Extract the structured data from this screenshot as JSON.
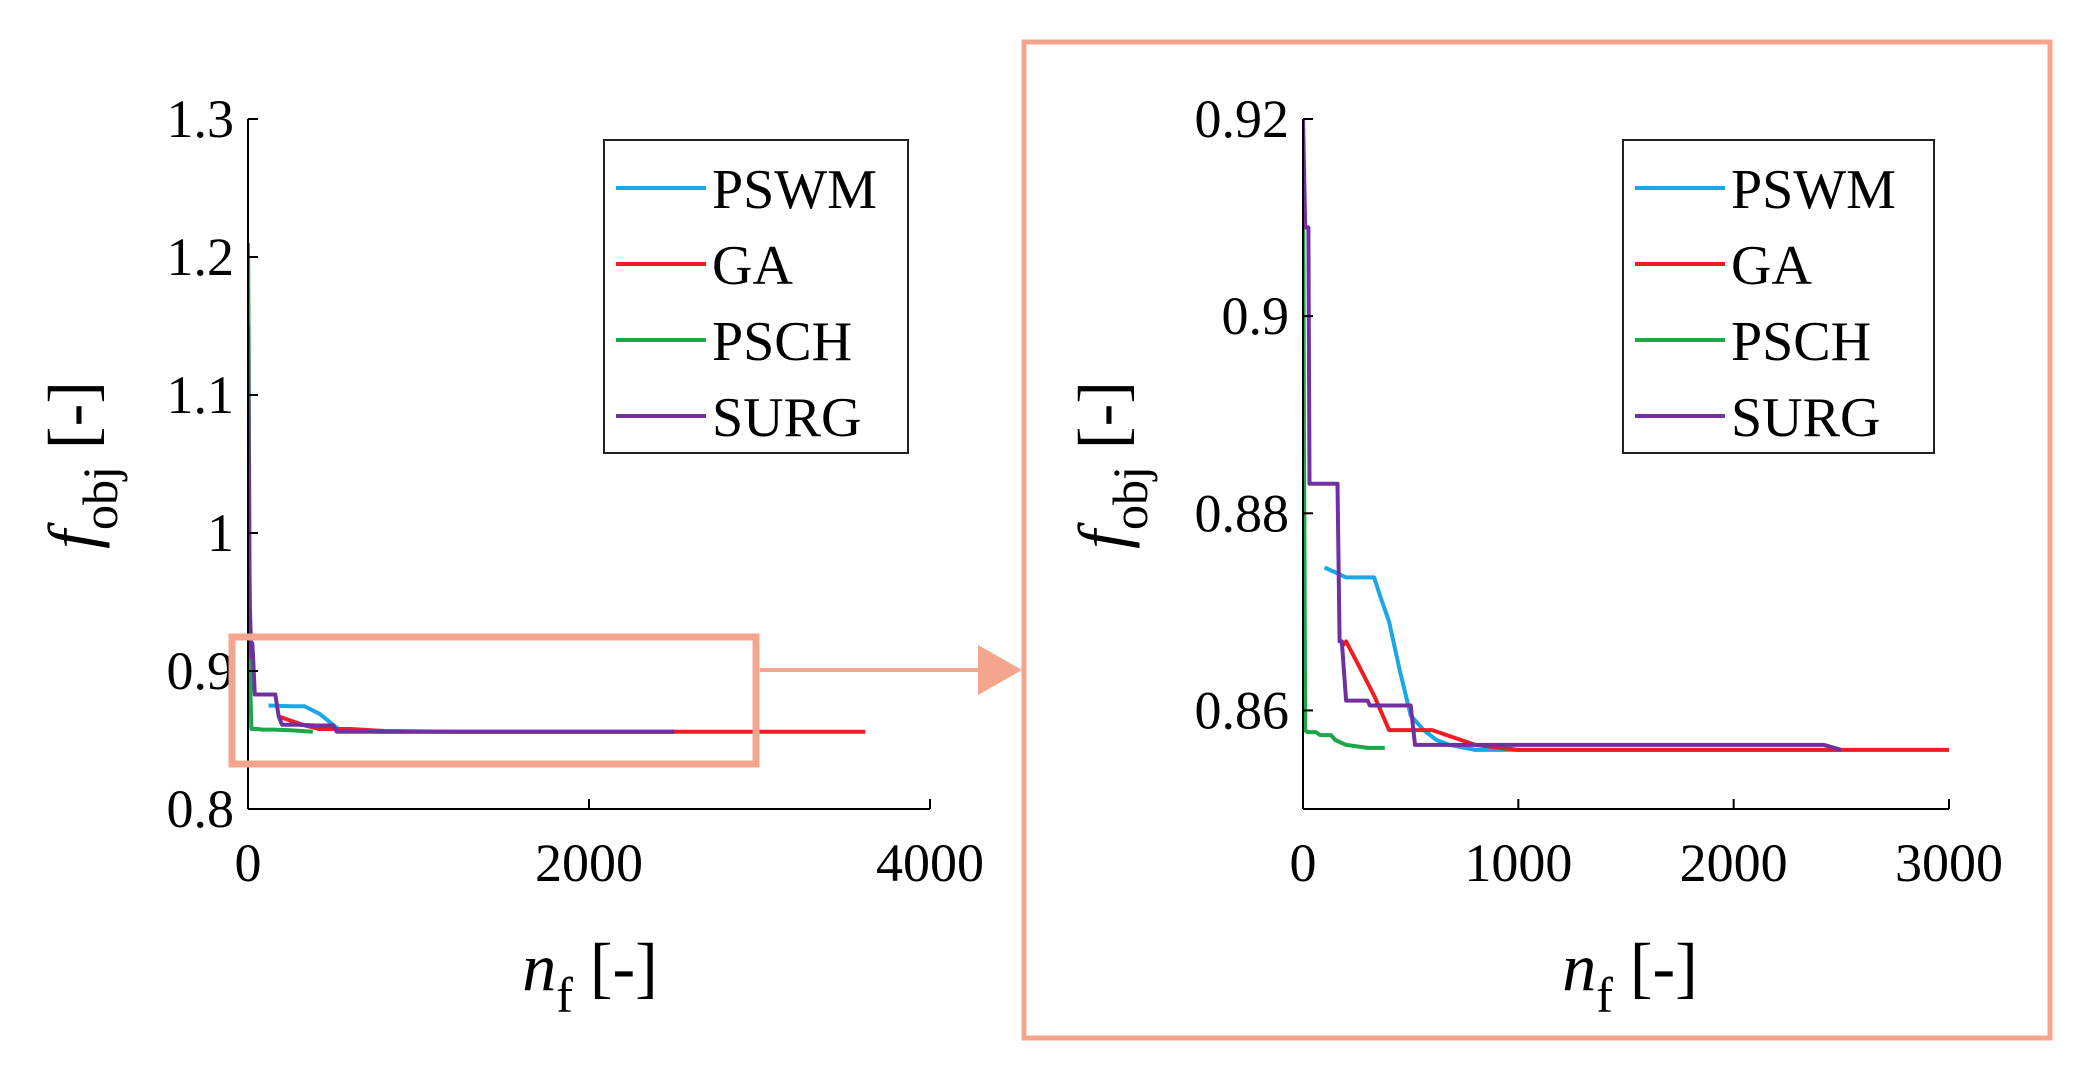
{
  "chart_data": [
    {
      "type": "line",
      "panel": "full",
      "title": "",
      "xlabel": {
        "main": "n",
        "sub": "f",
        "unit": "[-]"
      },
      "ylabel": {
        "main": "f",
        "sub": "obj",
        "unit": "[-]"
      },
      "xlim": [
        0,
        4000
      ],
      "ylim": [
        0.8,
        1.3
      ],
      "xticks": [
        0,
        2000,
        4000
      ],
      "xtick_labels": [
        "0",
        "2000",
        "4000"
      ],
      "yticks": [
        0.8,
        0.9,
        1.0,
        1.1,
        1.2,
        1.3
      ],
      "ytick_labels": [
        "0.8",
        "0.9",
        "1",
        "1.1",
        "1.2",
        "1.3"
      ],
      "grid": false,
      "legend_position": "top-right",
      "series": [
        {
          "name": "PSWM",
          "color": "#1AA7E6",
          "x": [
            120,
            250,
            330,
            420,
            530,
            760,
            900,
            2500
          ],
          "y": [
            0.875,
            0.8745,
            0.8745,
            0.869,
            0.858,
            0.856,
            0.856,
            0.856
          ]
        },
        {
          "name": "GA",
          "color": "#EE1C24",
          "x": [
            180,
            320,
            420,
            600,
            800,
            1200,
            2000,
            3620
          ],
          "y": [
            0.867,
            0.861,
            0.858,
            0.858,
            0.8565,
            0.856,
            0.856,
            0.856
          ]
        },
        {
          "name": "PSCH",
          "color": "#1BA84A",
          "x": [
            0,
            4,
            8,
            12,
            15,
            20,
            60,
            80,
            150,
            250,
            380
          ],
          "y": [
            1.21,
            1.13,
            0.98,
            0.93,
            0.88,
            0.858,
            0.858,
            0.8575,
            0.8575,
            0.857,
            0.856
          ]
        },
        {
          "name": "SURG",
          "color": "#7030A0",
          "x": [
            0,
            10,
            20,
            25,
            30,
            40,
            160,
            180,
            200,
            300,
            400,
            500,
            520,
            2500
          ],
          "y": [
            1.15,
            0.95,
            0.91,
            0.92,
            0.91,
            0.883,
            0.883,
            0.867,
            0.861,
            0.861,
            0.8605,
            0.8605,
            0.856,
            0.856
          ]
        }
      ],
      "zoom_box": {
        "x": [
          -100,
          3000
        ],
        "y": [
          0.835,
          0.925
        ]
      }
    },
    {
      "type": "line",
      "panel": "zoom",
      "title": "",
      "xlabel": {
        "main": "n",
        "sub": "f",
        "unit": "[-]"
      },
      "ylabel": {
        "main": "f",
        "sub": "obj",
        "unit": "[-]"
      },
      "xlim": [
        0,
        3000
      ],
      "ylim": [
        0.85,
        0.92
      ],
      "xticks": [
        0,
        1000,
        2000,
        3000
      ],
      "xtick_labels": [
        "0",
        "1000",
        "2000",
        "3000"
      ],
      "yticks": [
        0.86,
        0.88,
        0.9,
        0.92
      ],
      "ytick_labels": [
        "0.86",
        "0.88",
        "0.9",
        "0.92"
      ],
      "grid": false,
      "legend_position": "top-right",
      "series": [
        {
          "name": "PSWM",
          "color": "#1AA7E6",
          "x": [
            100,
            150,
            200,
            250,
            300,
            330,
            360,
            400,
            450,
            500,
            560,
            620,
            680,
            800,
            900,
            1200,
            2500
          ],
          "y": [
            0.8745,
            0.874,
            0.8735,
            0.8735,
            0.8735,
            0.8735,
            0.8715,
            0.869,
            0.864,
            0.8595,
            0.858,
            0.857,
            0.8565,
            0.856,
            0.856,
            0.856,
            0.856
          ]
        },
        {
          "name": "GA",
          "color": "#EE1C24",
          "x": [
            180,
            200,
            260,
            330,
            400,
            600,
            800,
            1000,
            1200,
            2000,
            3000
          ],
          "y": [
            0.8665,
            0.867,
            0.8645,
            0.8615,
            0.858,
            0.858,
            0.8565,
            0.856,
            0.856,
            0.856,
            0.856
          ]
        },
        {
          "name": "PSCH",
          "color": "#1BA84A",
          "x": [
            0,
            5,
            10,
            20,
            30,
            60,
            80,
            100,
            130,
            150,
            200,
            300,
            380
          ],
          "y": [
            0.92,
            0.885,
            0.858,
            0.8578,
            0.8578,
            0.8578,
            0.8575,
            0.8575,
            0.8575,
            0.857,
            0.8565,
            0.8562,
            0.8562
          ]
        },
        {
          "name": "SURG",
          "color": "#7030A0",
          "x": [
            0,
            10,
            20,
            25,
            30,
            40,
            160,
            170,
            180,
            200,
            300,
            310,
            400,
            500,
            520,
            1700,
            2400,
            2420,
            2500
          ],
          "y": [
            0.92,
            0.909,
            0.909,
            0.909,
            0.883,
            0.883,
            0.883,
            0.867,
            0.867,
            0.861,
            0.861,
            0.8605,
            0.8605,
            0.8605,
            0.8565,
            0.8565,
            0.8565,
            0.8565,
            0.856
          ]
        }
      ]
    }
  ]
}
